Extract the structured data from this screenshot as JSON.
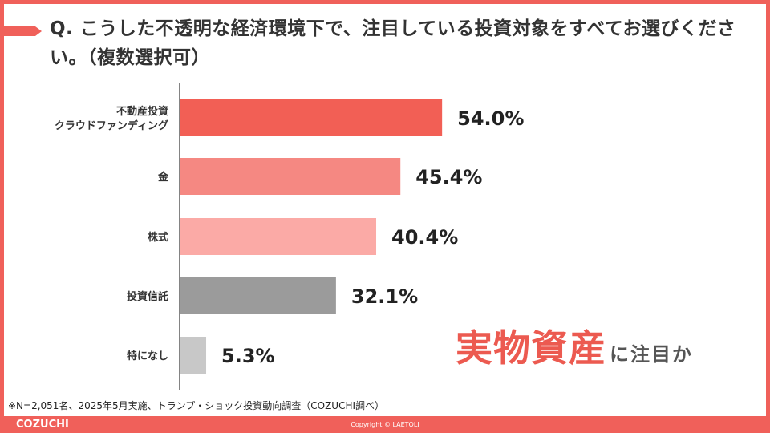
{
  "header": {
    "title": "Q. こうした不透明な経済環境下で、注目している投資対象をすべてお選びください。（複数選択可）"
  },
  "chart_data": {
    "type": "bar",
    "orientation": "horizontal",
    "categories": [
      "不動産投資\nクラウドファンディング",
      "金",
      "株式",
      "投資信託",
      "特になし"
    ],
    "values": [
      54.0,
      45.4,
      40.4,
      32.1,
      5.3
    ],
    "value_labels": [
      "54.0%",
      "45.4%",
      "40.4%",
      "32.1%",
      "5.3%"
    ],
    "unit": "%",
    "colors": [
      "#f25f55",
      "#f58882",
      "#fbaaa6",
      "#9b9b9b",
      "#c8c8c8"
    ],
    "grid": false
  },
  "callout": {
    "emphasis": "実物資産",
    "rest": "に注目か"
  },
  "note": "※N=2,051名、2025年5月実施、トランプ・ショック投資動向調査（COZUCHI調べ）",
  "footer": {
    "brand": "COZUCHI",
    "copyright": "Copyright © LAETOLI"
  },
  "theme": {
    "accent": "#f0605a"
  }
}
